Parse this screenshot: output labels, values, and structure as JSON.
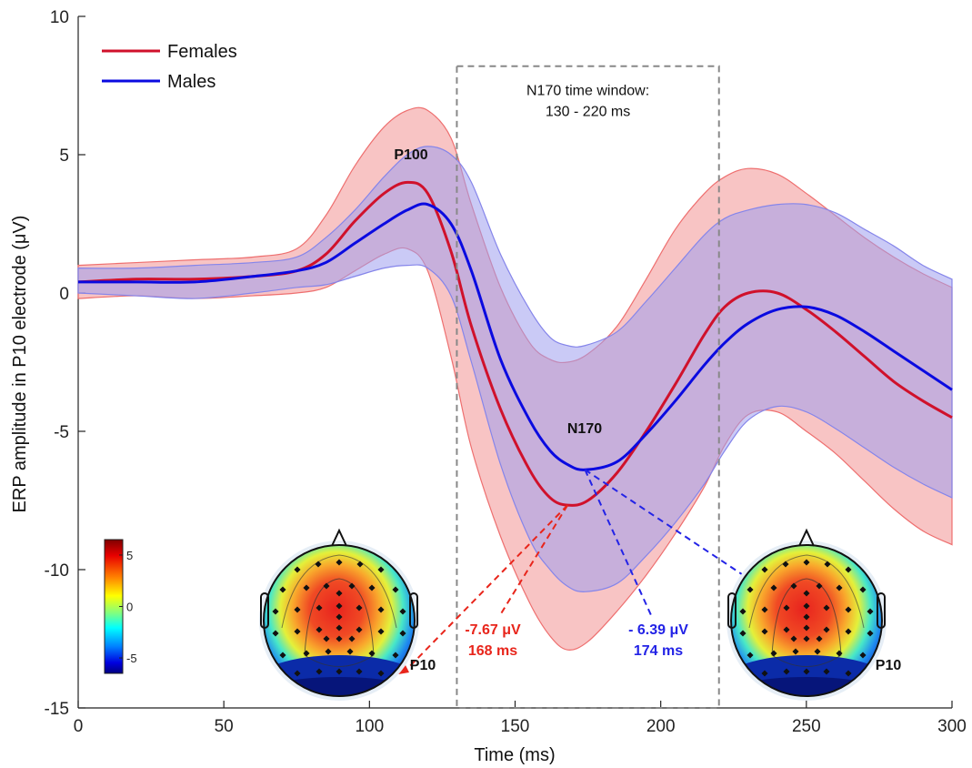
{
  "chart_data": {
    "type": "line",
    "xlabel": "Time (ms)",
    "ylabel": "ERP amplitude in P10 electrode (μV)",
    "xlim": [
      0,
      300
    ],
    "ylim": [
      -15,
      10
    ],
    "x_ticks": [
      "0",
      "50",
      "100",
      "150",
      "200",
      "250",
      "300"
    ],
    "y_ticks": [
      "-15",
      "-10",
      "-5",
      "0",
      "5",
      "10"
    ],
    "grid": false,
    "legend_position": "top-left",
    "series": [
      {
        "name": "Females",
        "color": "#d0112b",
        "band_color": "#f4a0a0",
        "x": [
          0,
          20,
          40,
          60,
          75,
          85,
          95,
          105,
          113,
          120,
          128,
          135,
          145,
          155,
          162,
          168,
          175,
          185,
          195,
          205,
          215,
          222,
          230,
          240,
          250,
          260,
          270,
          280,
          290,
          300
        ],
        "y": [
          0.4,
          0.5,
          0.5,
          0.6,
          0.8,
          1.4,
          2.6,
          3.6,
          4.0,
          3.6,
          1.5,
          -1.2,
          -4.2,
          -6.4,
          -7.4,
          -7.67,
          -7.5,
          -6.5,
          -5.0,
          -3.3,
          -1.5,
          -0.5,
          0.0,
          0.0,
          -0.6,
          -1.4,
          -2.3,
          -3.2,
          -3.9,
          -4.5
        ],
        "upper": [
          1.0,
          1.1,
          1.2,
          1.3,
          1.6,
          2.8,
          4.6,
          6.0,
          6.6,
          6.6,
          5.6,
          3.2,
          0.2,
          -1.8,
          -2.4,
          -2.5,
          -2.2,
          -1.2,
          0.5,
          2.3,
          3.6,
          4.2,
          4.5,
          4.3,
          3.6,
          2.8,
          2.0,
          1.3,
          0.7,
          0.2
        ],
        "lower": [
          -0.2,
          -0.1,
          -0.2,
          -0.1,
          0.0,
          0.2,
          0.8,
          1.4,
          1.6,
          0.8,
          -2.3,
          -5.6,
          -8.8,
          -11.2,
          -12.4,
          -12.9,
          -12.6,
          -11.5,
          -10.2,
          -8.7,
          -7.0,
          -5.5,
          -4.4,
          -4.3,
          -5.0,
          -5.8,
          -6.8,
          -7.8,
          -8.6,
          -9.1
        ]
      },
      {
        "name": "Males",
        "color": "#0a0ae0",
        "band_color": "#a7a7ef",
        "x": [
          0,
          20,
          40,
          60,
          75,
          85,
          95,
          105,
          113,
          120,
          128,
          135,
          145,
          155,
          162,
          168,
          174,
          185,
          195,
          205,
          215,
          222,
          230,
          240,
          250,
          260,
          270,
          280,
          290,
          300
        ],
        "y": [
          0.4,
          0.4,
          0.4,
          0.6,
          0.8,
          1.1,
          1.8,
          2.5,
          3.0,
          3.2,
          2.5,
          0.8,
          -2.4,
          -4.6,
          -5.7,
          -6.2,
          -6.39,
          -6.1,
          -5.1,
          -3.9,
          -2.6,
          -1.8,
          -1.1,
          -0.6,
          -0.5,
          -0.8,
          -1.4,
          -2.1,
          -2.8,
          -3.5
        ],
        "upper": [
          0.9,
          0.9,
          1.0,
          1.1,
          1.3,
          2.0,
          3.0,
          4.2,
          5.0,
          5.3,
          5.0,
          4.0,
          1.4,
          -0.6,
          -1.6,
          -1.9,
          -1.9,
          -1.4,
          -0.3,
          0.9,
          2.1,
          2.7,
          3.0,
          3.2,
          3.2,
          2.9,
          2.3,
          1.7,
          1.0,
          0.5
        ],
        "lower": [
          0.0,
          -0.1,
          -0.2,
          0.0,
          0.2,
          0.3,
          0.6,
          0.9,
          1.0,
          0.9,
          -0.1,
          -2.5,
          -6.2,
          -8.9,
          -10.0,
          -10.6,
          -10.8,
          -10.5,
          -9.5,
          -8.3,
          -6.9,
          -5.7,
          -4.6,
          -4.1,
          -4.3,
          -4.9,
          -5.6,
          -6.3,
          -6.9,
          -7.4
        ]
      }
    ],
    "annotations": {
      "p100": "P100",
      "n170": "N170",
      "window_line1": "N170 time window:",
      "window_line2": "130 - 220 ms",
      "window_range": [
        130,
        220
      ],
      "window_ylim": [
        -15,
        8.2
      ],
      "female_peak": {
        "x": 168,
        "y": -7.67,
        "value_label": "-7.67 μV",
        "time_label": "168 ms"
      },
      "male_peak": {
        "x": 174,
        "y": -6.39,
        "value_label": "- 6.39 μV",
        "time_label": "174 ms"
      },
      "electrode_label_left": "P10",
      "electrode_label_right": "P10"
    },
    "colorbar": {
      "ticks": [
        "5",
        "0",
        "-5"
      ],
      "range": [
        -6.5,
        6.5
      ],
      "colormap": "jet"
    }
  }
}
